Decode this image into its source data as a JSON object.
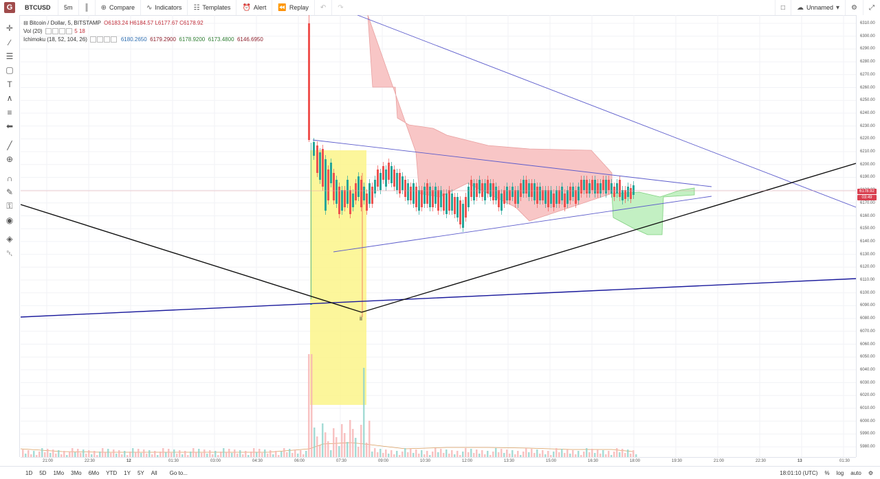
{
  "toolbar": {
    "symbol": "BTCUSD",
    "interval": "5m",
    "compare": "Compare",
    "indicators": "Indicators",
    "templates": "Templates",
    "alert": "Alert",
    "replay": "Replay",
    "layout_name": "Unnamed"
  },
  "legend": {
    "title": "Bitcoin / Dollar, 5, BITSTAMP",
    "open": "O6183.24",
    "high": "H6184.57",
    "low": "L6177.67",
    "close": "C6178.92",
    "vol_label": "Vol (20)",
    "vol_v1": "5",
    "vol_v2": "18",
    "ichimoku_label": "Ichimoku (18, 52, 104, 26)",
    "ichimoku_values": [
      "6180.2650",
      "6179.2900",
      "6178.9200",
      "6173.4800",
      "6146.6950"
    ]
  },
  "price_axis": {
    "labels": [
      "6310.00",
      "6300.00",
      "6290.00",
      "6280.00",
      "6270.00",
      "6260.00",
      "6250.00",
      "6240.00",
      "6230.00",
      "6220.00",
      "6210.00",
      "6200.00",
      "6190.00",
      "6180.00",
      "6170.00",
      "6160.00",
      "6150.00",
      "6140.00",
      "6130.00",
      "6120.00",
      "6110.00",
      "6100.00",
      "6090.00",
      "6080.00",
      "6070.00",
      "6060.00",
      "6050.00",
      "6040.00",
      "6030.00",
      "6020.00",
      "6010.00",
      "6000.00",
      "5990.00",
      "5980.00"
    ],
    "last_price": "6178.92",
    "countdown": "03:49",
    "last_price_color": "#d94050",
    "countdown_color": "#d94050"
  },
  "time_axis": {
    "labels": [
      "21:00",
      "22:30",
      "12",
      "01:30",
      "03:00",
      "04:30",
      "06:00",
      "07:30",
      "09:00",
      "10:30",
      "12:00",
      "13:30",
      "15:00",
      "16:30",
      "18:00",
      "19:30",
      "21:00",
      "22:30",
      "13",
      "01:30"
    ]
  },
  "annotation": {
    "label": "ii"
  },
  "bottom": {
    "ranges": [
      "1D",
      "5D",
      "1Mo",
      "3Mo",
      "6Mo",
      "YTD",
      "1Y",
      "5Y",
      "All"
    ],
    "goto": "Go to...",
    "clock": "18:01:10 (UTC)",
    "percent": "%",
    "log": "log",
    "auto": "auto"
  },
  "colors": {
    "up": "#26a69a",
    "down": "#ef5350",
    "cloud_bear": "#f8c6c6",
    "cloud_bull": "#c3f0c3",
    "highlight": "#fbf58a",
    "trendline_blue": "#5a5acb",
    "trendline_navy": "#1a1a9c"
  }
}
